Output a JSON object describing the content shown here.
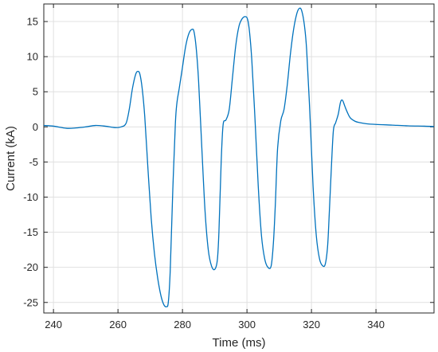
{
  "chart_data": {
    "type": "line",
    "xlabel": "Time (ms)",
    "ylabel": "Current (kA)",
    "xlim": [
      237,
      358
    ],
    "ylim": [
      -26.5,
      17.5
    ],
    "xticks": [
      240,
      260,
      280,
      300,
      320,
      340
    ],
    "yticks": [
      -25,
      -20,
      -15,
      -10,
      -5,
      0,
      5,
      10,
      15
    ],
    "xtick_labels": [
      "240",
      "260",
      "280",
      "300",
      "320",
      "340"
    ],
    "ytick_labels": [
      "-25",
      "-20",
      "-15",
      "-10",
      "-5",
      "0",
      "5",
      "10",
      "15"
    ],
    "grid": true,
    "box": true,
    "series_color": "#0072BD",
    "series": [
      {
        "x": [
          237,
          240,
          244,
          247,
          250,
          253,
          256,
          259,
          261,
          262.5,
          263.5,
          264.5,
          265.5,
          266.2,
          266.8,
          267.5,
          268.3,
          269.3,
          270.3,
          271.3,
          272.3,
          273.3,
          274.2,
          275,
          275.6,
          276.2,
          277,
          277.8,
          278.3,
          279,
          280,
          281,
          282,
          283,
          283.6,
          284.3,
          285,
          286,
          287,
          288,
          289,
          290,
          290.8,
          291.3,
          292,
          292.6,
          293.5,
          294.5,
          295.5,
          296.5,
          297.5,
          298.5,
          299.5,
          300.2,
          300.8,
          301.5,
          302.5,
          303.5,
          304.5,
          305.5,
          306.5,
          307.5,
          308.2,
          308.8,
          309.5,
          310.5,
          311.5,
          312.5,
          313.5,
          314.5,
          315.5,
          316.3,
          317,
          317.8,
          318.5,
          319.5,
          320.5,
          321.5,
          322.5,
          323.5,
          324.3,
          325,
          325.5,
          326.2,
          326.8,
          327.5,
          328.3,
          329,
          329.6,
          330.3,
          331,
          332,
          333.5,
          335,
          337,
          340,
          345,
          350,
          355,
          358
        ],
        "y": [
          0.2,
          0.1,
          -0.2,
          -0.15,
          0.0,
          0.2,
          0.1,
          -0.1,
          0.0,
          0.5,
          2.5,
          5.5,
          7.5,
          7.9,
          7.5,
          5.5,
          1.5,
          -6.0,
          -13.0,
          -18.0,
          -21.5,
          -24.0,
          -25.3,
          -25.6,
          -25.0,
          -20.5,
          -9.0,
          0.5,
          3.5,
          5.5,
          8.5,
          11.5,
          13.3,
          13.9,
          13.5,
          11.0,
          6.5,
          -3.0,
          -12.0,
          -17.5,
          -19.8,
          -20.3,
          -19.0,
          -15.0,
          -5.0,
          0.3,
          1.0,
          2.5,
          7.0,
          11.5,
          14.3,
          15.4,
          15.7,
          15.3,
          13.5,
          9.5,
          1.0,
          -8.5,
          -15.5,
          -18.8,
          -20.0,
          -19.8,
          -16.5,
          -11.0,
          -3.0,
          0.9,
          2.5,
          6.0,
          10.5,
          14.0,
          16.2,
          16.9,
          16.5,
          14.5,
          11.0,
          2.0,
          -8.5,
          -15.5,
          -18.8,
          -19.8,
          -19.5,
          -17.0,
          -12.5,
          -5.5,
          -0.5,
          0.6,
          1.8,
          3.5,
          3.8,
          3.0,
          2.2,
          1.3,
          0.8,
          0.6,
          0.45,
          0.35,
          0.25,
          0.15,
          0.1,
          0.05
        ]
      }
    ]
  }
}
